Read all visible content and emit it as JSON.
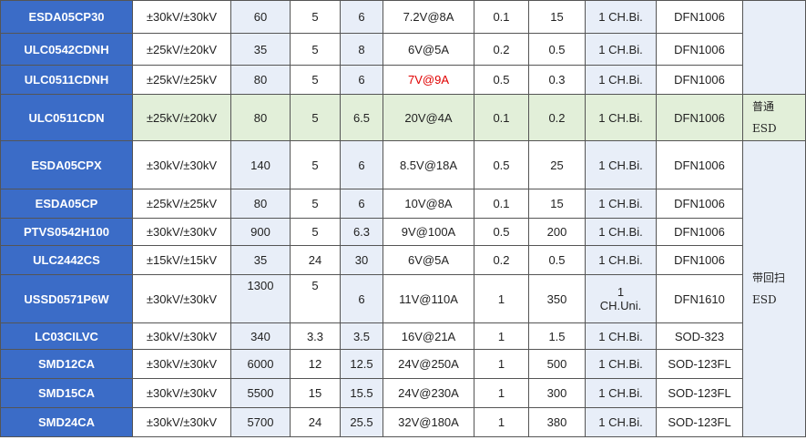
{
  "table": {
    "rows": [
      [
        "ESDA05CP30",
        "±30kV/±30kV",
        "60",
        "5",
        "6",
        "7.2V@8A",
        "0.1",
        "15",
        "1 CH.Bi.",
        "DFN1006"
      ],
      [
        "ULC0542CDNH",
        "±25kV/±20kV",
        "35",
        "5",
        "8",
        "6V@5A",
        "0.2",
        "0.5",
        "1 CH.Bi.",
        "DFN1006"
      ],
      [
        "ULC0511CDNH",
        "±25kV/±25kV",
        "80",
        "5",
        "6",
        "7V@9A",
        "0.5",
        "0.3",
        "1 CH.Bi.",
        "DFN1006"
      ],
      [
        "ULC0511CDN",
        "±25kV/±20kV",
        "80",
        "5",
        "6.5",
        "20V@4A",
        "0.1",
        "0.2",
        "1 CH.Bi.",
        "DFN1006"
      ],
      [
        "ESDA05CPX",
        "±30kV/±30kV",
        "140",
        "5",
        "6",
        "8.5V@18A",
        "0.5",
        "25",
        "1 CH.Bi.",
        "DFN1006"
      ],
      [
        "ESDA05CP",
        "±25kV/±25kV",
        "80",
        "5",
        "6",
        "10V@8A",
        "0.1",
        "15",
        "1 CH.Bi.",
        "DFN1006"
      ],
      [
        "PTVS0542H100",
        "±30kV/±30kV",
        "900",
        "5",
        "6.3",
        "9V@100A",
        "0.5",
        "200",
        "1 CH.Bi.",
        "DFN1006"
      ],
      [
        "ULC2442CS",
        "±15kV/±15kV",
        "35",
        "24",
        "30",
        "6V@5A",
        "0.2",
        "0.5",
        "1 CH.Bi.",
        "DFN1006"
      ],
      [
        "USSD0571P6W",
        "±30kV/±30kV",
        "1300",
        "5",
        "6",
        "11V@110A",
        "1",
        "350",
        "1\nCH.Uni.",
        "DFN1610"
      ],
      [
        "LC03CILVC",
        "±30kV/±30kV",
        "340",
        "3.3",
        "3.5",
        "16V@21A",
        "1",
        "1.5",
        "1 CH.Bi.",
        "SOD-323"
      ],
      [
        "SMD12CA",
        "±30kV/±30kV",
        "6000",
        "12",
        "12.5",
        "24V@250A",
        "1",
        "500",
        "1 CH.Bi.",
        "SOD-123FL"
      ],
      [
        "SMD15CA",
        "±30kV/±30kV",
        "5500",
        "15",
        "15.5",
        "24V@230A",
        "1",
        "300",
        "1 CH.Bi.",
        "SOD-123FL"
      ],
      [
        "SMD24CA",
        "±30kV/±30kV",
        "5700",
        "24",
        "25.5",
        "32V@180A",
        "1",
        "380",
        "1 CH.Bi.",
        "SOD-123FL"
      ]
    ],
    "groups": [
      {
        "lines": []
      },
      {
        "lines": [
          "普通",
          "ESD"
        ]
      },
      {
        "lines": [
          "带回扫",
          "ESD"
        ]
      }
    ]
  }
}
